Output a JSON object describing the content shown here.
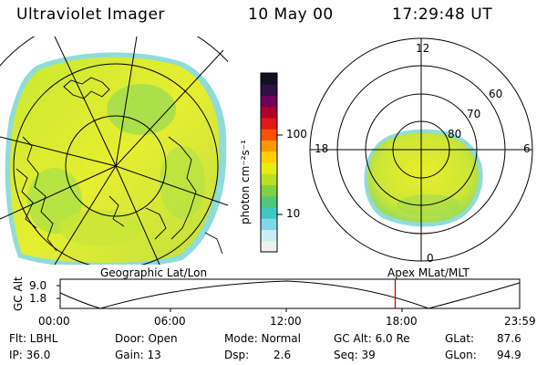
{
  "header": {
    "instrument": "Ultraviolet Imager",
    "date": "10 May 00",
    "time": "17:29:48 UT"
  },
  "colorbar": {
    "unit_label": "photon cm⁻²s⁻¹",
    "ticks": [
      "100",
      "10"
    ],
    "colors": [
      "#f0f0f0",
      "#c8eef2",
      "#7fd8e8",
      "#3ec8c0",
      "#50c878",
      "#80d040",
      "#b8e020",
      "#e8ec10",
      "#ffd000",
      "#ff9800",
      "#ff5000",
      "#e01818",
      "#b00028",
      "#700058",
      "#301048",
      "#101020"
    ]
  },
  "left_panel": {
    "caption": "Geographic Lat/Lon"
  },
  "right_panel": {
    "caption": "Apex MLat/MLT",
    "mlt_labels": {
      "top": "12",
      "left": "18",
      "right": "6",
      "bottom": "0"
    },
    "lat_labels": [
      "60",
      "70",
      "80"
    ]
  },
  "altitude_plot": {
    "ylabel": "GC Alt",
    "yticks": [
      "9.0",
      "1.8"
    ],
    "xticks": [
      "00:00",
      "06:00",
      "12:00",
      "18:00",
      "23:59"
    ],
    "marker_time_hours": 17.5,
    "marker_color": "#cc0000"
  },
  "info": {
    "filter": "Flt: LBHL",
    "ip": "IP: 36.0",
    "door": "Door: Open",
    "gain": "Gain: 13",
    "mode": "Mode: Normal",
    "dsp_label": "Dsp:",
    "dsp_value": "2.6",
    "gc_alt": "GC Alt: 6.0 Re",
    "seq": "Seq: 39",
    "glat_label": "GLat:",
    "glat_value": "87.6",
    "glon_label": "GLon:",
    "glon_value": "94.9"
  }
}
